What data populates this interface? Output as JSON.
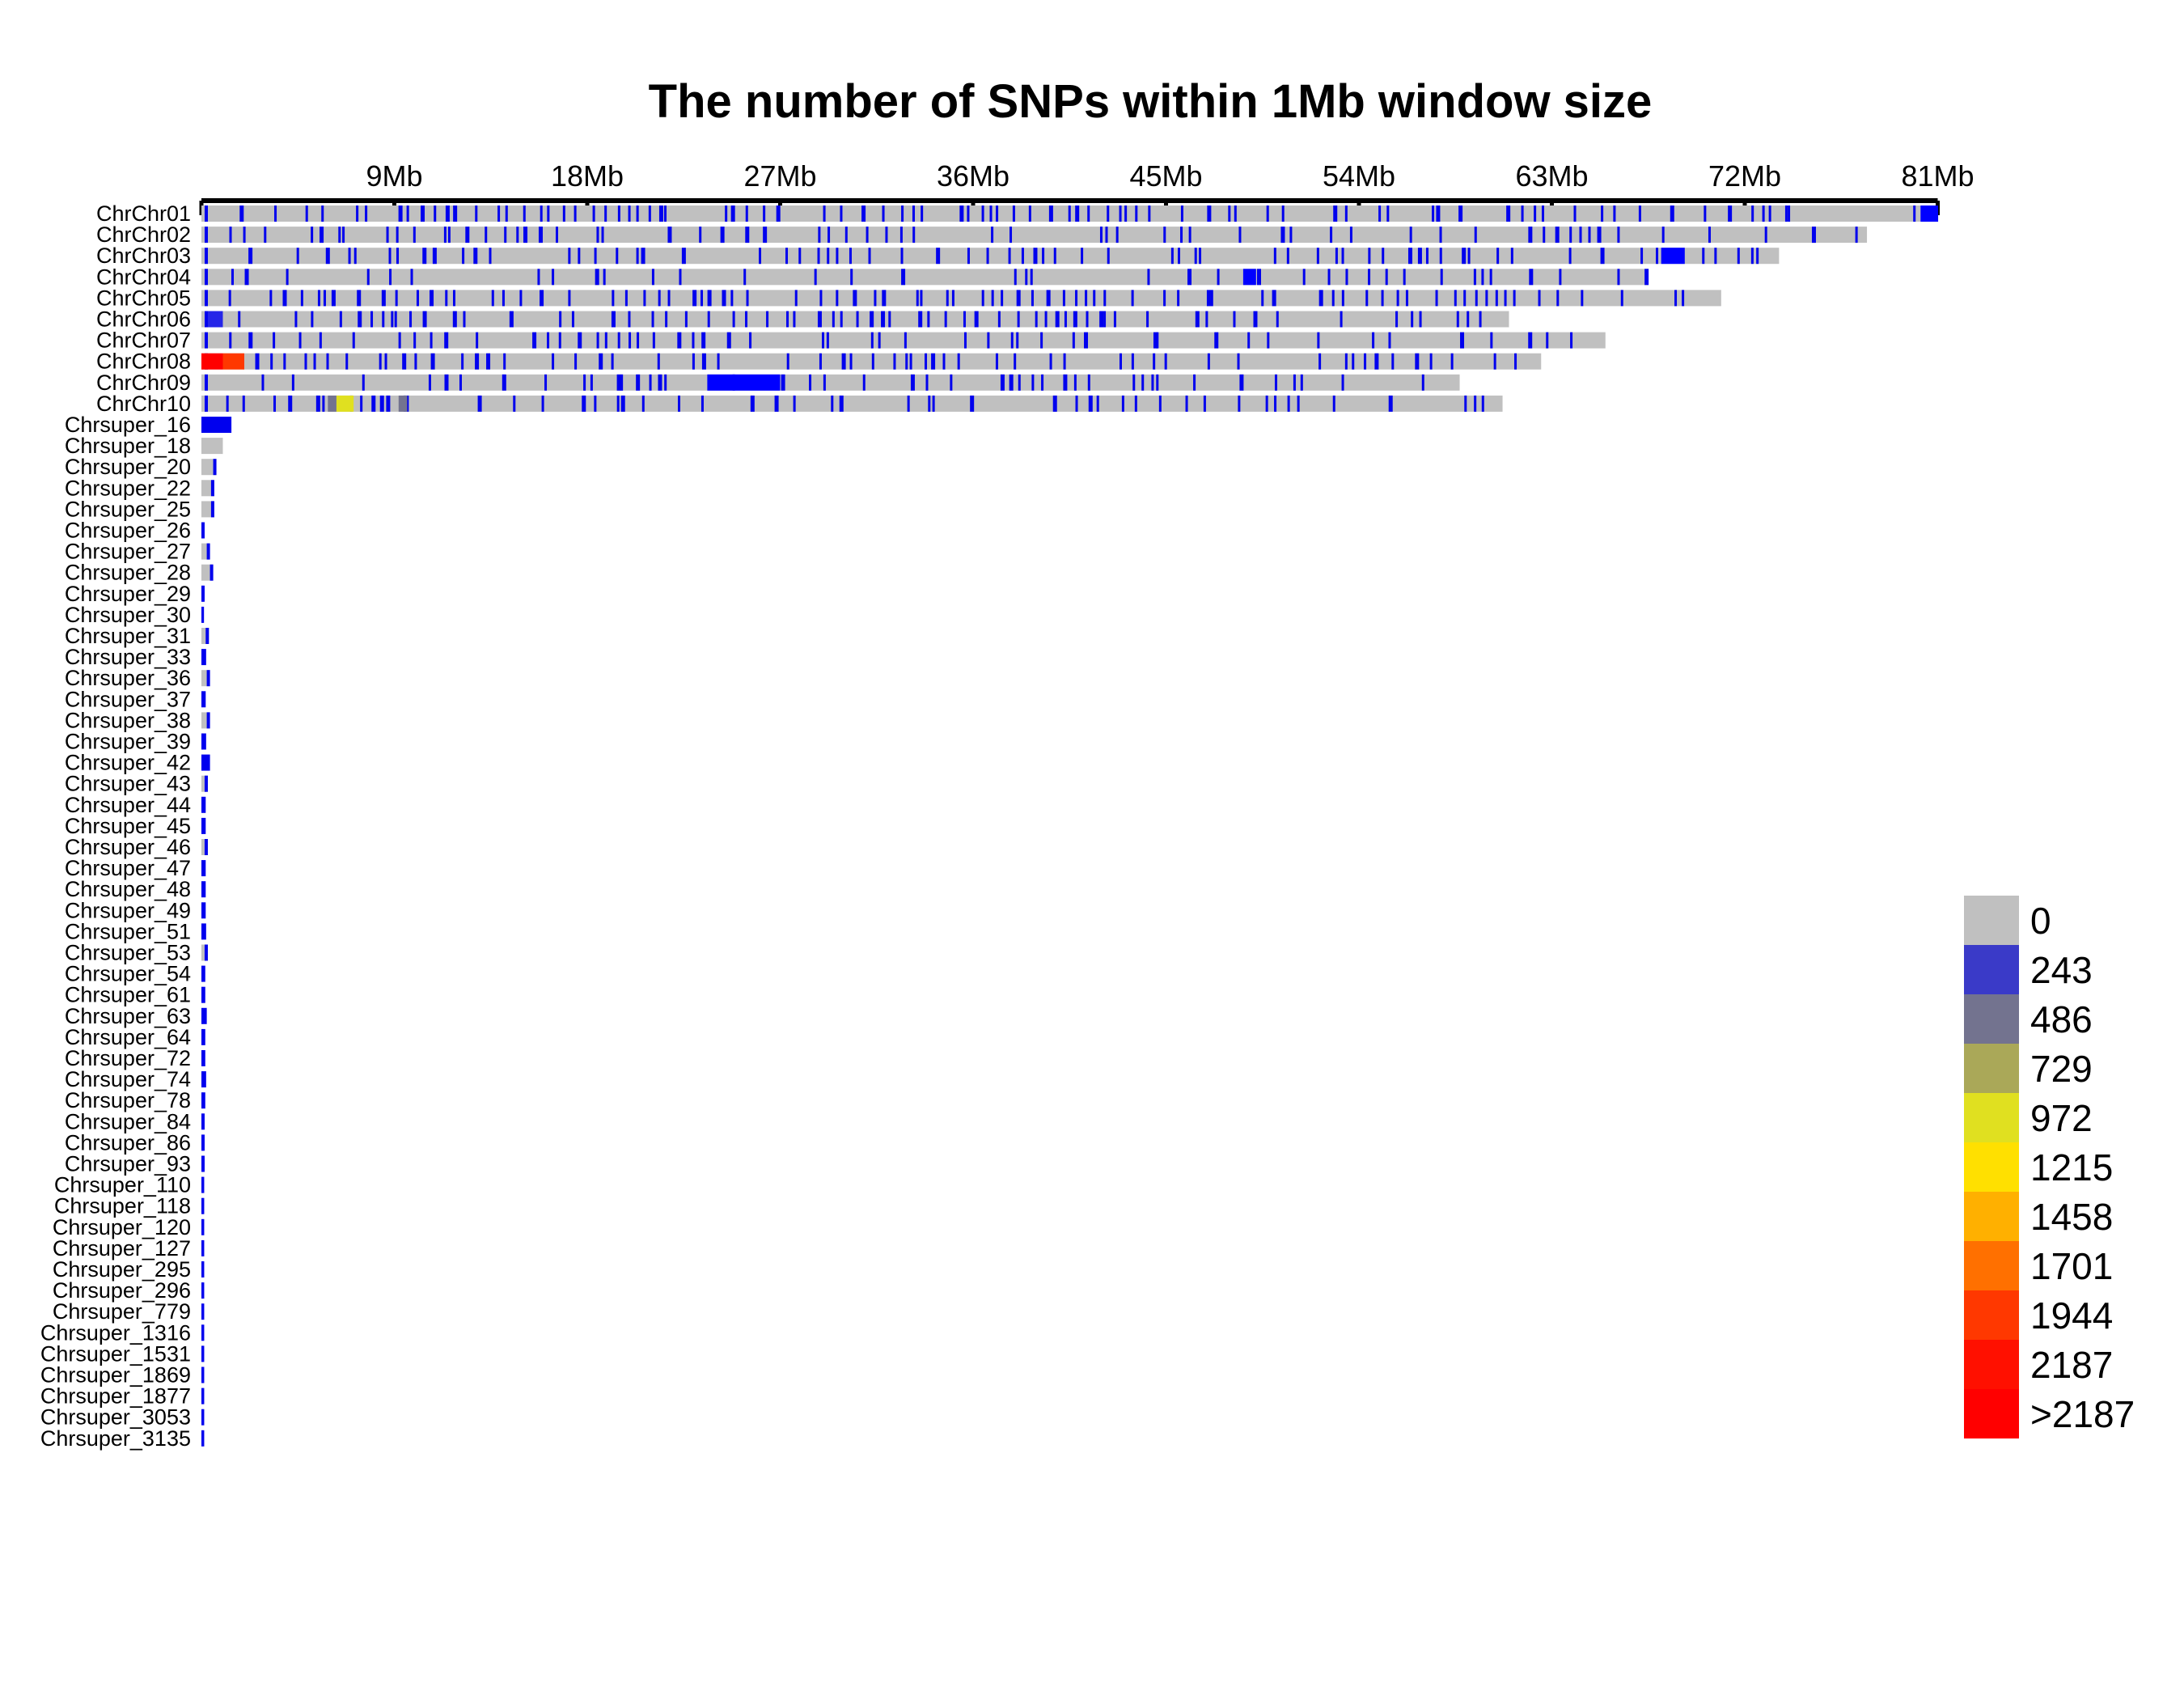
{
  "chart_data": {
    "type": "heatmap",
    "title": "The number of SNPs within 1Mb window size",
    "window_mb": 1,
    "x_ticks": [
      "9Mb",
      "18Mb",
      "27Mb",
      "36Mb",
      "45Mb",
      "54Mb",
      "63Mb",
      "72Mb",
      "81Mb"
    ],
    "x_tick_values_mb": [
      9,
      18,
      27,
      36,
      45,
      54,
      63,
      72,
      81
    ],
    "x_range_mb": [
      0,
      81
    ],
    "legend": {
      "position": "right",
      "labels": [
        "0",
        "243",
        "486",
        "729",
        "972",
        "1215",
        "1458",
        "1701",
        "1944",
        "2187",
        ">2187"
      ],
      "colors": [
        "#c0c0c0",
        "#3a3ac8",
        "#73738f",
        "#aaa858",
        "#e0e020",
        "#ffe000",
        "#ffb000",
        "#ff7000",
        "#ff3800",
        "#ff1000",
        "#ff0000"
      ]
    },
    "chromosomes": [
      {
        "name": "ChrChr01",
        "length_mb": 81,
        "density": "dense",
        "high_windows": [
          [
            80.2,
            81,
            "#0000ff"
          ]
        ]
      },
      {
        "name": "ChrChr02",
        "length_mb": 77.7,
        "density": "medium",
        "high_windows": []
      },
      {
        "name": "ChrChr03",
        "length_mb": 73.6,
        "density": "medium",
        "high_windows": [
          [
            68.1,
            69.2,
            "#0000ff"
          ]
        ]
      },
      {
        "name": "ChrChr04",
        "length_mb": 67.5,
        "density": "low",
        "high_windows": [
          [
            48.6,
            49.2,
            "#0000ff"
          ]
        ]
      },
      {
        "name": "ChrChr05",
        "length_mb": 70.9,
        "density": "dense",
        "high_windows": []
      },
      {
        "name": "ChrChr06",
        "length_mb": 61.0,
        "density": "dense",
        "high_windows": [
          [
            0.3,
            1.0,
            "#2525e8"
          ]
        ]
      },
      {
        "name": "ChrChr07",
        "length_mb": 65.5,
        "density": "medium",
        "high_windows": []
      },
      {
        "name": "ChrChr08",
        "length_mb": 62.5,
        "density": "medium",
        "high_windows": [
          [
            0,
            1,
            "#ff0000"
          ],
          [
            1,
            2,
            "#ff3800"
          ]
        ]
      },
      {
        "name": "ChrChr09",
        "length_mb": 58.7,
        "density": "medium",
        "high_windows": [
          [
            23.6,
            27.0,
            "#0000ff"
          ]
        ]
      },
      {
        "name": "ChrChr10",
        "length_mb": 60.7,
        "density": "medium",
        "high_windows": [
          [
            5.9,
            6.3,
            "#73738f"
          ],
          [
            6.3,
            7.1,
            "#e0e020"
          ],
          [
            9.2,
            9.6,
            "#73738f"
          ]
        ]
      },
      {
        "name": "Chrsuper_16",
        "length_mb": 1.4,
        "density": "blue",
        "high_windows": []
      },
      {
        "name": "Chrsuper_18",
        "length_mb": 1.0,
        "density": "gray",
        "high_windows": []
      },
      {
        "name": "Chrsuper_20",
        "length_mb": 0.7,
        "density": "part",
        "high_windows": []
      },
      {
        "name": "Chrsuper_22",
        "length_mb": 0.6,
        "density": "part",
        "high_windows": []
      },
      {
        "name": "Chrsuper_25",
        "length_mb": 0.6,
        "density": "part",
        "high_windows": []
      },
      {
        "name": "Chrsuper_26",
        "length_mb": 0.15,
        "density": "blue",
        "high_windows": []
      },
      {
        "name": "Chrsuper_27",
        "length_mb": 0.4,
        "density": "part",
        "high_windows": []
      },
      {
        "name": "Chrsuper_28",
        "length_mb": 0.55,
        "density": "part",
        "high_windows": []
      },
      {
        "name": "Chrsuper_29",
        "length_mb": 0.15,
        "density": "blue",
        "high_windows": []
      },
      {
        "name": "Chrsuper_30",
        "length_mb": 0.12,
        "density": "blue",
        "high_windows": []
      },
      {
        "name": "Chrsuper_31",
        "length_mb": 0.35,
        "density": "part",
        "high_windows": []
      },
      {
        "name": "Chrsuper_33",
        "length_mb": 0.22,
        "density": "blue",
        "high_windows": []
      },
      {
        "name": "Chrsuper_36",
        "length_mb": 0.4,
        "density": "part",
        "high_windows": []
      },
      {
        "name": "Chrsuper_37",
        "length_mb": 0.2,
        "density": "blue",
        "high_windows": []
      },
      {
        "name": "Chrsuper_38",
        "length_mb": 0.4,
        "density": "part",
        "high_windows": []
      },
      {
        "name": "Chrsuper_39",
        "length_mb": 0.22,
        "density": "blue",
        "high_windows": []
      },
      {
        "name": "Chrsuper_42",
        "length_mb": 0.4,
        "density": "blue",
        "high_windows": []
      },
      {
        "name": "Chrsuper_43",
        "length_mb": 0.3,
        "density": "part",
        "high_windows": []
      },
      {
        "name": "Chrsuper_44",
        "length_mb": 0.2,
        "density": "blue",
        "high_windows": []
      },
      {
        "name": "Chrsuper_45",
        "length_mb": 0.2,
        "density": "blue",
        "high_windows": []
      },
      {
        "name": "Chrsuper_46",
        "length_mb": 0.3,
        "density": "part",
        "high_windows": []
      },
      {
        "name": "Chrsuper_47",
        "length_mb": 0.2,
        "density": "blue",
        "high_windows": []
      },
      {
        "name": "Chrsuper_48",
        "length_mb": 0.2,
        "density": "blue",
        "high_windows": []
      },
      {
        "name": "Chrsuper_49",
        "length_mb": 0.2,
        "density": "blue",
        "high_windows": []
      },
      {
        "name": "Chrsuper_51",
        "length_mb": 0.22,
        "density": "blue",
        "high_windows": []
      },
      {
        "name": "Chrsuper_53",
        "length_mb": 0.3,
        "density": "part",
        "high_windows": []
      },
      {
        "name": "Chrsuper_54",
        "length_mb": 0.18,
        "density": "blue",
        "high_windows": []
      },
      {
        "name": "Chrsuper_61",
        "length_mb": 0.18,
        "density": "blue",
        "high_windows": []
      },
      {
        "name": "Chrsuper_63",
        "length_mb": 0.25,
        "density": "blue",
        "high_windows": []
      },
      {
        "name": "Chrsuper_64",
        "length_mb": 0.18,
        "density": "blue",
        "high_windows": []
      },
      {
        "name": "Chrsuper_72",
        "length_mb": 0.18,
        "density": "blue",
        "high_windows": []
      },
      {
        "name": "Chrsuper_74",
        "length_mb": 0.22,
        "density": "blue",
        "high_windows": []
      },
      {
        "name": "Chrsuper_78",
        "length_mb": 0.18,
        "density": "blue",
        "high_windows": []
      },
      {
        "name": "Chrsuper_84",
        "length_mb": 0.15,
        "density": "blue",
        "high_windows": []
      },
      {
        "name": "Chrsuper_86",
        "length_mb": 0.15,
        "density": "blue",
        "high_windows": []
      },
      {
        "name": "Chrsuper_93",
        "length_mb": 0.15,
        "density": "blue",
        "high_windows": []
      },
      {
        "name": "Chrsuper_110",
        "length_mb": 0.13,
        "density": "blue",
        "high_windows": []
      },
      {
        "name": "Chrsuper_118",
        "length_mb": 0.13,
        "density": "blue",
        "high_windows": []
      },
      {
        "name": "Chrsuper_120",
        "length_mb": 0.13,
        "density": "blue",
        "high_windows": []
      },
      {
        "name": "Chrsuper_127",
        "length_mb": 0.13,
        "density": "blue",
        "high_windows": []
      },
      {
        "name": "Chrsuper_295",
        "length_mb": 0.13,
        "density": "blue",
        "high_windows": []
      },
      {
        "name": "Chrsuper_296",
        "length_mb": 0.13,
        "density": "blue",
        "high_windows": []
      },
      {
        "name": "Chrsuper_779",
        "length_mb": 0.13,
        "density": "blue",
        "high_windows": []
      },
      {
        "name": "Chrsuper_1316",
        "length_mb": 0.13,
        "density": "blue",
        "high_windows": []
      },
      {
        "name": "Chrsuper_1531",
        "length_mb": 0.13,
        "density": "blue",
        "high_windows": []
      },
      {
        "name": "Chrsuper_1869",
        "length_mb": 0.13,
        "density": "blue",
        "high_windows": []
      },
      {
        "name": "Chrsuper_1877",
        "length_mb": 0.13,
        "density": "blue",
        "high_windows": []
      },
      {
        "name": "Chrsuper_3053",
        "length_mb": 0.13,
        "density": "blue",
        "high_windows": []
      },
      {
        "name": "Chrsuper_3135",
        "length_mb": 0.13,
        "density": "blue",
        "high_windows": []
      }
    ]
  }
}
